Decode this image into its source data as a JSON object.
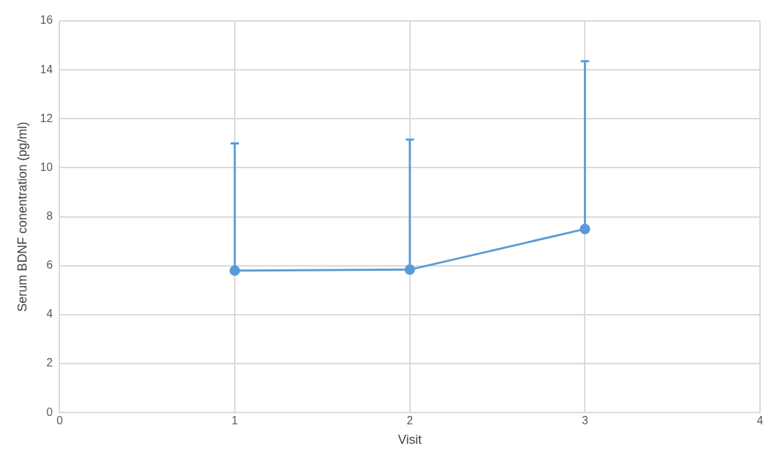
{
  "chart_data": {
    "type": "line",
    "xlabel": "Visit",
    "ylabel": "Serum BDNF conentration (pg/ml)",
    "x": [
      1,
      2,
      3
    ],
    "series": [
      {
        "color": "#5b9bd5",
        "values": [
          5.8,
          5.84,
          7.5
        ],
        "errors": [
          [
            5.8,
            11.0
          ],
          [
            5.84,
            11.15
          ],
          [
            7.5,
            14.35
          ]
        ]
      }
    ],
    "xlim": [
      0,
      4
    ],
    "xticks": [
      0,
      1,
      2,
      3,
      4
    ],
    "ylim": [
      0,
      16
    ],
    "yticks": [
      0,
      2,
      4,
      6,
      8,
      10,
      12,
      14,
      16
    ],
    "grid": true,
    "marker": "circle",
    "line_style": "solid",
    "legend": false
  }
}
